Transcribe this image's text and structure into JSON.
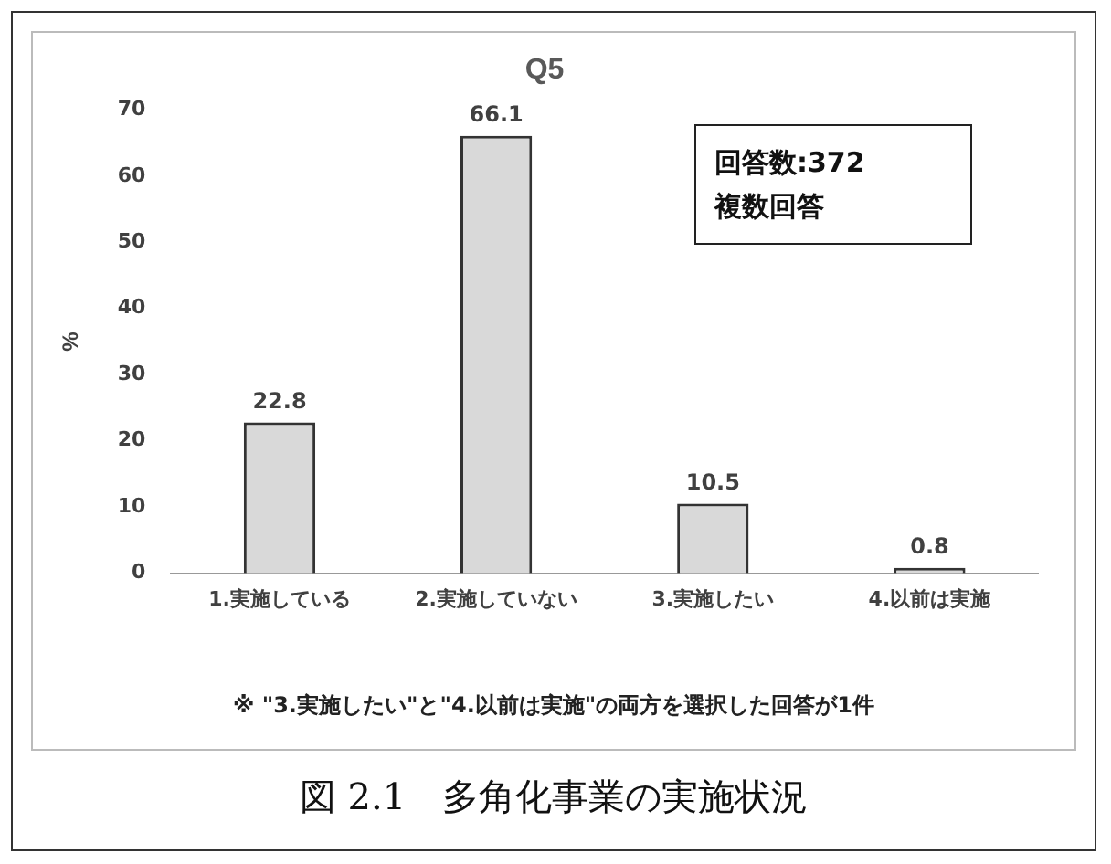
{
  "chart_data": {
    "type": "bar",
    "title": "Q5",
    "ylabel": "%",
    "categories": [
      "1.実施している",
      "2.実施していない",
      "3.実施したい",
      "4.以前は実施"
    ],
    "values": [
      22.8,
      66.1,
      10.5,
      0.8
    ],
    "color": "#d9d9d9",
    "ylim": [
      0,
      70
    ],
    "yticks": [
      0,
      10,
      20,
      30,
      40,
      50,
      60,
      70
    ],
    "grid": false,
    "data_labels": true,
    "legend": false,
    "annotations": [
      "回答数:372",
      "複数回答",
      "※ \"3.実施したい\"と\"4.以前は実施\"の両方を選択した回答が1件",
      "図 2.1　多角化事業の実施状況"
    ]
  }
}
